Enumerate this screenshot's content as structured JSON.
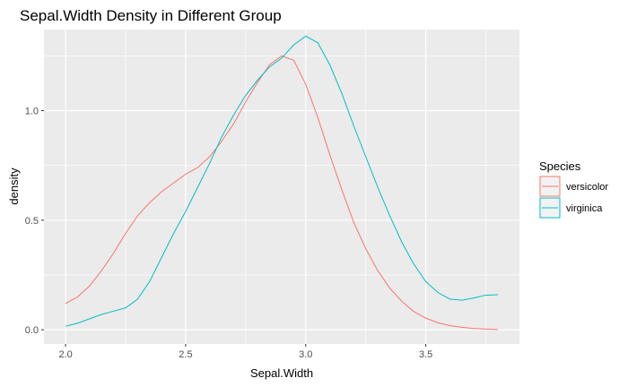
{
  "chart_data": {
    "type": "line",
    "title": "Sepal.Width Density in Different Group",
    "xlabel": "Sepal.Width",
    "ylabel": "density",
    "xlim": [
      1.91,
      3.89
    ],
    "ylim": [
      -0.065,
      1.37
    ],
    "x_ticks": [
      2.0,
      2.5,
      3.0,
      3.5
    ],
    "x_tick_labels": [
      "2.0",
      "2.5",
      "3.0",
      "3.5"
    ],
    "y_ticks": [
      0.0,
      0.5,
      1.0
    ],
    "y_tick_labels": [
      "0.0",
      "0.5",
      "1.0"
    ],
    "grid": true,
    "background": "#ebebeb",
    "legend": {
      "title": "Species",
      "position": "right"
    },
    "series": [
      {
        "name": "versicolor",
        "color": "#F8766D",
        "points": [
          [
            2.0,
            0.12
          ],
          [
            2.05,
            0.15
          ],
          [
            2.1,
            0.2
          ],
          [
            2.15,
            0.27
          ],
          [
            2.2,
            0.35
          ],
          [
            2.25,
            0.44
          ],
          [
            2.3,
            0.52
          ],
          [
            2.35,
            0.58
          ],
          [
            2.4,
            0.63
          ],
          [
            2.45,
            0.67
          ],
          [
            2.5,
            0.71
          ],
          [
            2.55,
            0.74
          ],
          [
            2.6,
            0.79
          ],
          [
            2.65,
            0.86
          ],
          [
            2.7,
            0.94
          ],
          [
            2.75,
            1.04
          ],
          [
            2.8,
            1.13
          ],
          [
            2.85,
            1.21
          ],
          [
            2.9,
            1.25
          ],
          [
            2.95,
            1.23
          ],
          [
            3.0,
            1.12
          ],
          [
            3.05,
            0.97
          ],
          [
            3.1,
            0.8
          ],
          [
            3.15,
            0.64
          ],
          [
            3.2,
            0.49
          ],
          [
            3.25,
            0.37
          ],
          [
            3.3,
            0.27
          ],
          [
            3.35,
            0.19
          ],
          [
            3.4,
            0.13
          ],
          [
            3.45,
            0.083
          ],
          [
            3.5,
            0.053
          ],
          [
            3.55,
            0.032
          ],
          [
            3.6,
            0.019
          ],
          [
            3.65,
            0.011
          ],
          [
            3.7,
            0.006
          ],
          [
            3.75,
            0.003
          ],
          [
            3.8,
            0.001
          ]
        ]
      },
      {
        "name": "virginica",
        "color": "#00BFC4",
        "points": [
          [
            2.0,
            0.016
          ],
          [
            2.05,
            0.03
          ],
          [
            2.1,
            0.05
          ],
          [
            2.15,
            0.07
          ],
          [
            2.2,
            0.085
          ],
          [
            2.25,
            0.1
          ],
          [
            2.3,
            0.14
          ],
          [
            2.35,
            0.22
          ],
          [
            2.4,
            0.33
          ],
          [
            2.45,
            0.44
          ],
          [
            2.5,
            0.54
          ],
          [
            2.55,
            0.65
          ],
          [
            2.6,
            0.76
          ],
          [
            2.65,
            0.88
          ],
          [
            2.7,
            0.98
          ],
          [
            2.75,
            1.07
          ],
          [
            2.8,
            1.14
          ],
          [
            2.85,
            1.2
          ],
          [
            2.9,
            1.24
          ],
          [
            2.95,
            1.3
          ],
          [
            3.0,
            1.34
          ],
          [
            3.05,
            1.31
          ],
          [
            3.1,
            1.21
          ],
          [
            3.15,
            1.08
          ],
          [
            3.2,
            0.93
          ],
          [
            3.25,
            0.79
          ],
          [
            3.3,
            0.65
          ],
          [
            3.35,
            0.52
          ],
          [
            3.4,
            0.4
          ],
          [
            3.45,
            0.3
          ],
          [
            3.5,
            0.22
          ],
          [
            3.55,
            0.17
          ],
          [
            3.6,
            0.14
          ],
          [
            3.65,
            0.135
          ],
          [
            3.7,
            0.145
          ],
          [
            3.75,
            0.158
          ],
          [
            3.8,
            0.16
          ]
        ]
      }
    ]
  }
}
